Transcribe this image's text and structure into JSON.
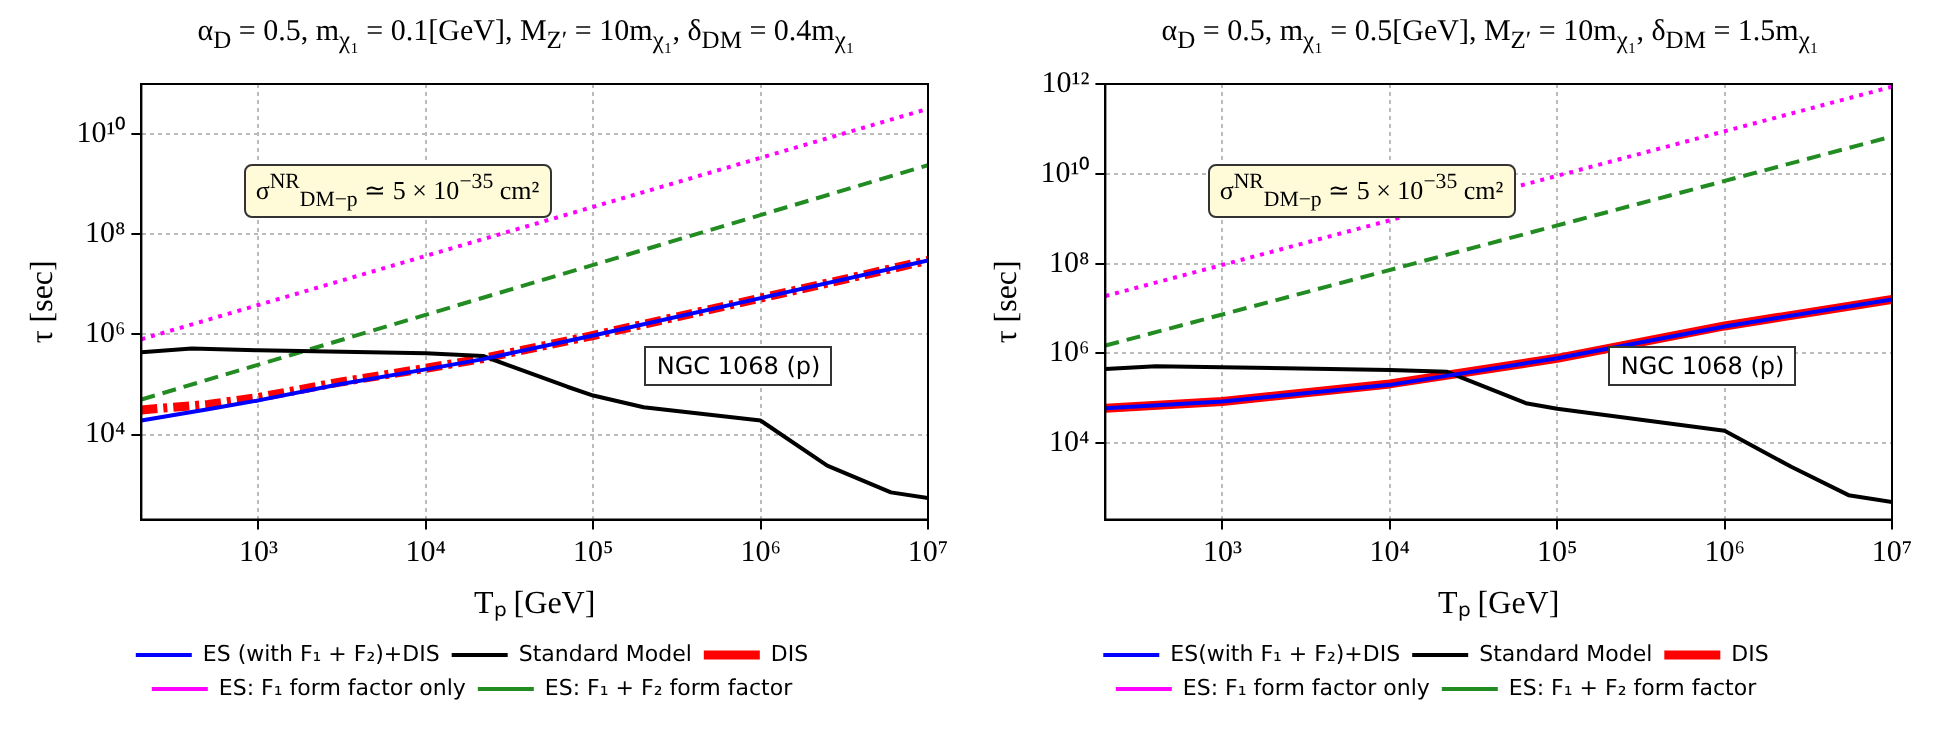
{
  "chart_data": [
    {
      "type": "line",
      "title": "α$_{D}$ = 0.5, m$_{χ₁}$ = 0.1[GeV], M$_{Z′}$ = 10m$_{χ₁}$, δ$_{DM}$ = 0.4m$_{χ₁}$",
      "xlabel": "Tₚ [GeV]",
      "ylabel": "τ [sec]",
      "log": "xy",
      "grid": true,
      "legend": "bottom",
      "marker": "none",
      "xlim": [
        200,
        10000000
      ],
      "xticks": [
        {
          "value": 1000,
          "label": "10³"
        },
        {
          "value": 10000,
          "label": "10⁴"
        },
        {
          "value": 100000,
          "label": "10⁵"
        },
        {
          "value": 1000000,
          "label": "10⁶"
        },
        {
          "value": 10000000,
          "label": "10⁷"
        }
      ],
      "ylim": [
        200,
        100000000000
      ],
      "yticks": [
        {
          "value": 10000,
          "label": "10⁴"
        },
        {
          "value": 1000000,
          "label": "10⁶"
        },
        {
          "value": 100000000,
          "label": "10⁸"
        },
        {
          "value": 10000000000,
          "label": "10¹⁰"
        }
      ],
      "annotations": [
        "σ$^{NR}$$_{DM−p}$ ≃ 5 × 10$^{−35}$ cm²",
        "NGC 1068 (p)"
      ],
      "series": [
        {
          "name": "ES: F₁ + F₂ form factor",
          "color": "#228b22",
          "line_style": "dashed",
          "x": [
            200,
            10000000
          ],
          "values": [
            50000.0,
            2400000000.0
          ]
        },
        {
          "name": "ES: F₁ form factor only",
          "color": "#ff00ff",
          "line_style": "dotted",
          "x": [
            200,
            10000000
          ],
          "values": [
            800000.0,
            32000000000.0
          ]
        },
        {
          "name": "DIS",
          "color": "#ff0000",
          "line_style": "dashdot",
          "x": [
            200,
            500,
            1000,
            3000,
            10000,
            22000,
            100000,
            1000000,
            10000000
          ],
          "values": [
            31000.0,
            40000.0,
            55000.0,
            110000.0,
            210000.0,
            330000.0,
            950000.0,
            5300000.0,
            30000000.0
          ]
        },
        {
          "name": "Standard Model",
          "color": "#000000",
          "line_style": "solid",
          "x": [
            200,
            400,
            1000,
            10000,
            22000,
            70000,
            100000,
            200000,
            1000000,
            2500000,
            6000000,
            10000000
          ],
          "values": [
            440000.0,
            520000.0,
            480000.0,
            420000.0,
            370000.0,
            90000.0,
            60000.0,
            35000.0,
            19000.0,
            2400.0,
            700,
            540
          ]
        },
        {
          "name": "ES (with F₁ + F₂)+DIS",
          "color": "#0000ff",
          "line_style": "solid",
          "x": [
            200,
            500,
            1000,
            3000,
            10000,
            22000,
            100000,
            1000000,
            10000000
          ],
          "values": [
            19000.0,
            32000.0,
            48000.0,
            100000.0,
            200000.0,
            320000.0,
            950000.0,
            5300000.0,
            30000000.0
          ]
        }
      ]
    },
    {
      "type": "line",
      "title": "α$_{D}$ = 0.5, m$_{χ₁}$ = 0.5[GeV], M$_{Z′}$ = 10m$_{χ₁}$, δ$_{DM}$ = 1.5m$_{χ₁}$",
      "xlabel": "Tₚ [GeV]",
      "ylabel": "τ [sec]",
      "log": "xy",
      "grid": true,
      "legend": "bottom",
      "marker": "none",
      "xlim": [
        200,
        10000000
      ],
      "xticks": [
        {
          "value": 1000,
          "label": "10³"
        },
        {
          "value": 10000,
          "label": "10⁴"
        },
        {
          "value": 100000,
          "label": "10⁵"
        },
        {
          "value": 1000000,
          "label": "10⁶"
        },
        {
          "value": 10000000,
          "label": "10⁷"
        }
      ],
      "ylim": [
        200,
        1000000000000
      ],
      "yticks": [
        {
          "value": 10000,
          "label": "10⁴"
        },
        {
          "value": 1000000,
          "label": "10⁶"
        },
        {
          "value": 100000000,
          "label": "10⁸"
        },
        {
          "value": 10000000000,
          "label": "10¹⁰"
        },
        {
          "value": 1000000000000,
          "label": "10¹²"
        }
      ],
      "annotations": [
        "σ$^{NR}$$_{DM−p}$ ≃ 5 × 10$^{−35}$ cm²",
        "NGC 1068 (p)"
      ],
      "series": [
        {
          "name": "ES: F₁ + F₂ form factor",
          "color": "#228b22",
          "line_style": "dashed",
          "x": [
            200,
            10000000
          ],
          "values": [
            1500000.0,
            68000000000.0
          ]
        },
        {
          "name": "ES: F₁ form factor only",
          "color": "#ff00ff",
          "line_style": "dotted",
          "x": [
            200,
            10000000
          ],
          "values": [
            19000000.0,
            870000000000.0
          ]
        },
        {
          "name": "DIS",
          "color": "#ff0000",
          "line_style": "solid",
          "x": [
            200,
            1000,
            10000,
            100000,
            1000000,
            10000000
          ],
          "values": [
            60000.0,
            85000.0,
            210000.0,
            780000.0,
            4100000.0,
            16000000.0
          ]
        },
        {
          "name": "Standard Model",
          "color": "#000000",
          "line_style": "solid",
          "x": [
            200,
            400,
            10000,
            22000,
            65000,
            100000,
            1000000,
            2500000,
            5500000,
            10000000
          ],
          "values": [
            450000.0,
            520000.0,
            430000.0,
            390000.0,
            78000.0,
            59000.0,
            19000.0,
            3000.0,
            700,
            490
          ]
        },
        {
          "name": "ES(with F₁ + F₂)+DIS",
          "color": "#0000ff",
          "line_style": "solid",
          "x": [
            200,
            1000,
            10000,
            100000,
            1000000,
            10000000
          ],
          "values": [
            60000.0,
            85000.0,
            200000.0,
            780000.0,
            4000000.0,
            16000000.0
          ]
        }
      ]
    }
  ]
}
